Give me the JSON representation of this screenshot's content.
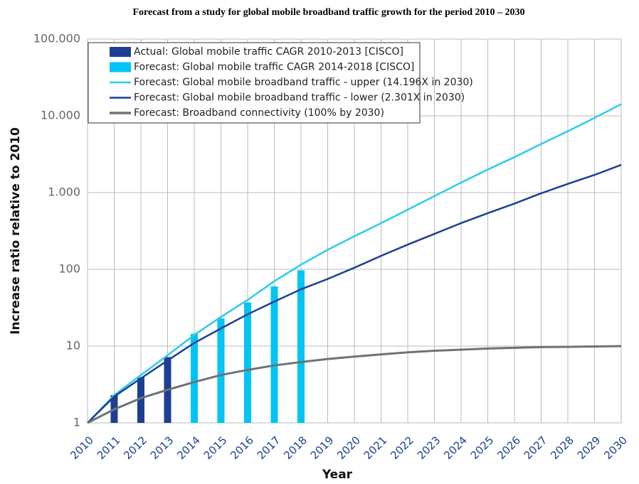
{
  "chart_data": {
    "type": "line",
    "title": "Forecast from a study for global mobile broadband traffic growth for the period 2010 – 2030",
    "x_label": "Year",
    "y_label": "Increase ratio relative to 2010",
    "x": [
      2010,
      2011,
      2012,
      2013,
      2014,
      2015,
      2016,
      2017,
      2018,
      2019,
      2020,
      2021,
      2022,
      2023,
      2024,
      2025,
      2026,
      2027,
      2028,
      2029,
      2030
    ],
    "xlim": [
      2010,
      2030
    ],
    "xticks": [
      2010,
      2011,
      2012,
      2013,
      2014,
      2015,
      2016,
      2017,
      2018,
      2019,
      2020,
      2021,
      2022,
      2023,
      2024,
      2025,
      2026,
      2027,
      2028,
      2029,
      2030
    ],
    "ylim": [
      1,
      100000
    ],
    "log_scale": true,
    "grid": true,
    "legend": "top-left",
    "yticks": [
      1,
      10,
      100,
      {
        "value": 1000,
        "label": "1.000"
      },
      {
        "value": 10000,
        "label": "10.000"
      },
      {
        "value": 100000,
        "label": "100.000"
      }
    ],
    "series": [
      {
        "name": "Actual: Global mobile traffic CAGR 2010-2013 [CISCO]",
        "mark": "bar",
        "color": "#1c3f94",
        "values": [
          null,
          2.3,
          3.9,
          7.2,
          null,
          null,
          null,
          null,
          null,
          null,
          null,
          null,
          null,
          null,
          null,
          null,
          null,
          null,
          null,
          null,
          null
        ]
      },
      {
        "name": "Forecast: Global mobile traffic CAGR 2014-2018 [CISCO]",
        "mark": "bar",
        "color": "#00c4f4",
        "values": [
          null,
          null,
          null,
          null,
          14.5,
          23,
          37,
          60,
          97,
          null,
          null,
          null,
          null,
          null,
          null,
          null,
          null,
          null,
          null,
          null,
          null
        ]
      },
      {
        "name": "Forecast: Global mobile broadband traffic - upper (14.196X in 2030)",
        "mark": "line",
        "color": "#2ccaf0",
        "values": [
          1,
          2.3,
          4.2,
          7.6,
          14,
          24,
          40,
          70,
          115,
          180,
          270,
          400,
          600,
          900,
          1350,
          2000,
          2900,
          4300,
          6300,
          9400,
          14196
        ]
      },
      {
        "name": "Forecast: Global mobile broadband traffic - lower (2.301X in 2030)",
        "mark": "line",
        "color": "#1c3f94",
        "values": [
          1,
          2.2,
          3.8,
          6.5,
          11,
          17,
          26,
          38,
          55,
          75,
          105,
          150,
          210,
          290,
          400,
          540,
          720,
          980,
          1300,
          1700,
          2301
        ]
      },
      {
        "name": "Forecast: Broadband connectivity (100% by 2030)",
        "mark": "line",
        "color": "#6d7278",
        "values": [
          1,
          1.5,
          2.1,
          2.7,
          3.4,
          4.2,
          4.9,
          5.6,
          6.2,
          6.8,
          7.3,
          7.8,
          8.3,
          8.7,
          9.0,
          9.3,
          9.5,
          9.7,
          9.8,
          9.9,
          10
        ]
      }
    ]
  }
}
